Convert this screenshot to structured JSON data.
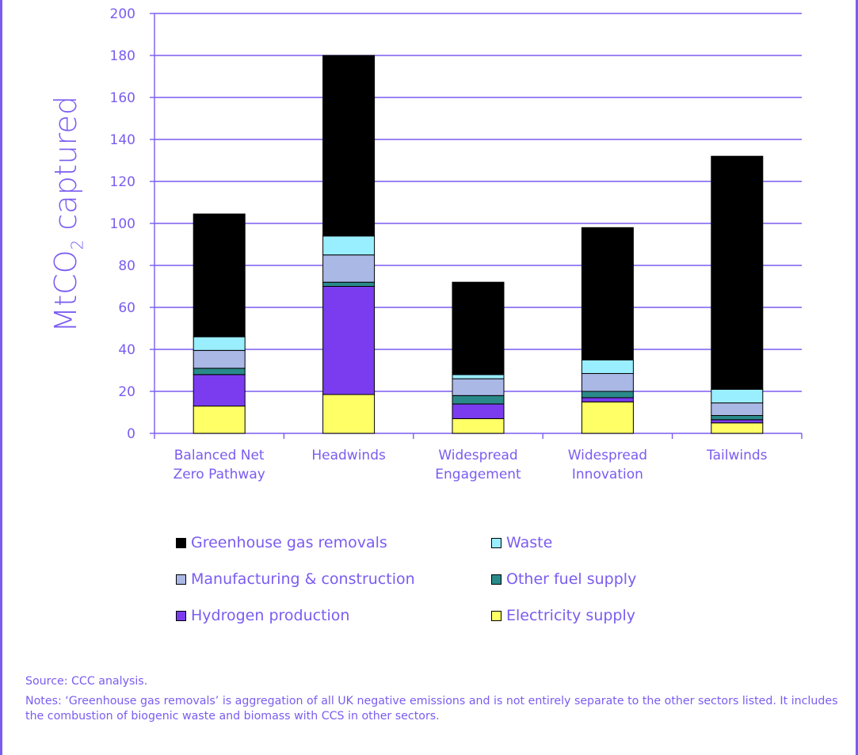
{
  "colors": {
    "text": "#7b5cf0",
    "gridline": "#7b5cf0",
    "axis": "#7b5cf0",
    "bar_border": "#000000"
  },
  "chart_data": {
    "type": "bar",
    "stacked": true,
    "ylabel_main": "MtCO",
    "ylabel_sub": "2",
    "ylabel_tail": " captured",
    "ylim": [
      0,
      200
    ],
    "yticks": [
      0,
      20,
      40,
      60,
      80,
      100,
      120,
      140,
      160,
      180,
      200
    ],
    "grid": true,
    "categories": [
      [
        "Balanced Net",
        "Zero Pathway"
      ],
      [
        "Headwinds"
      ],
      [
        "Widespread",
        "Engagement"
      ],
      [
        "Widespread",
        "Innovation"
      ],
      [
        "Tailwinds"
      ]
    ],
    "series": [
      {
        "name": "Electricity supply",
        "color": "#ffff66",
        "values": [
          13,
          18.5,
          7,
          15,
          5
        ]
      },
      {
        "name": "Hydrogen production",
        "color": "#7b3cf0",
        "values": [
          15,
          51.5,
          7,
          2,
          1.5
        ]
      },
      {
        "name": "Other fuel supply",
        "color": "#2a8a8a",
        "values": [
          3,
          2,
          4,
          3,
          2
        ]
      },
      {
        "name": "Manufacturing & construction",
        "color": "#aab8e6",
        "values": [
          8.5,
          13,
          8,
          8.5,
          6
        ]
      },
      {
        "name": "Waste",
        "color": "#99eeff",
        "values": [
          6.5,
          9,
          2,
          6.5,
          6.5
        ]
      },
      {
        "name": "Greenhouse gas removals",
        "color": "#000000",
        "values": [
          58.5,
          86,
          44,
          63,
          111
        ]
      }
    ],
    "legend_order": [
      "Greenhouse gas removals",
      "Waste",
      "Manufacturing & construction",
      "Other fuel supply",
      "Hydrogen production",
      "Electricity supply"
    ],
    "legend": "bottom"
  },
  "notes": {
    "source": "Source: CCC analysis.",
    "notes": "Notes: ‘Greenhouse gas removals’ is aggregation of all UK negative emissions and is not entirely separate to the other sectors listed. It includes the combustion of biogenic waste and biomass with CCS in other sectors."
  }
}
